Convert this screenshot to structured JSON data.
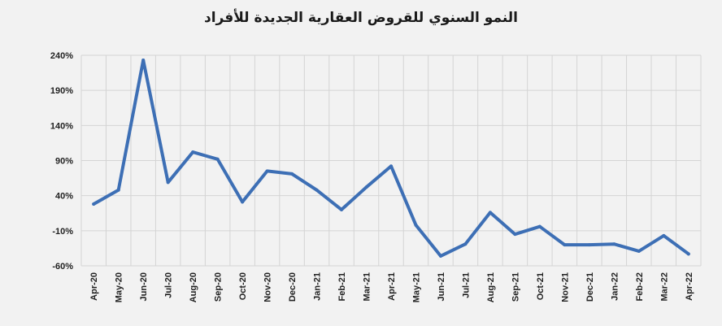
{
  "chart_data": {
    "type": "line",
    "title": "النمو السنوي للقروض العقارية الجديدة للأفراد",
    "xlabel": "",
    "ylabel": "",
    "ylim": [
      -60,
      240
    ],
    "yticks": [
      240,
      190,
      140,
      90,
      40,
      -10,
      -60
    ],
    "ytick_labels": [
      "240%",
      "190%",
      "140%",
      "90%",
      "40%",
      "-10%",
      "-60%"
    ],
    "grid": true,
    "legend": "none",
    "line_color": "#3d6fb5",
    "categories": [
      "Apr-20",
      "May-20",
      "Jun-20",
      "Jul-20",
      "Aug-20",
      "Sep-20",
      "Oct-20",
      "Nov-20",
      "Dec-20",
      "Jan-21",
      "Feb-21",
      "Mar-21",
      "Apr-21",
      "May-21",
      "Jun-21",
      "Jul-21",
      "Aug-21",
      "Sep-21",
      "Oct-21",
      "Nov-21",
      "Dec-21",
      "Jan-22",
      "Feb-22",
      "Mar-22",
      "Apr-22"
    ],
    "series": [
      {
        "values": [
          28,
          48,
          233,
          59,
          102,
          92,
          31,
          75,
          71,
          48,
          20,
          52,
          82,
          -2,
          -46,
          -29,
          16,
          -15,
          -4,
          -30,
          -30,
          -29,
          -39,
          -17,
          -43
        ]
      }
    ]
  }
}
